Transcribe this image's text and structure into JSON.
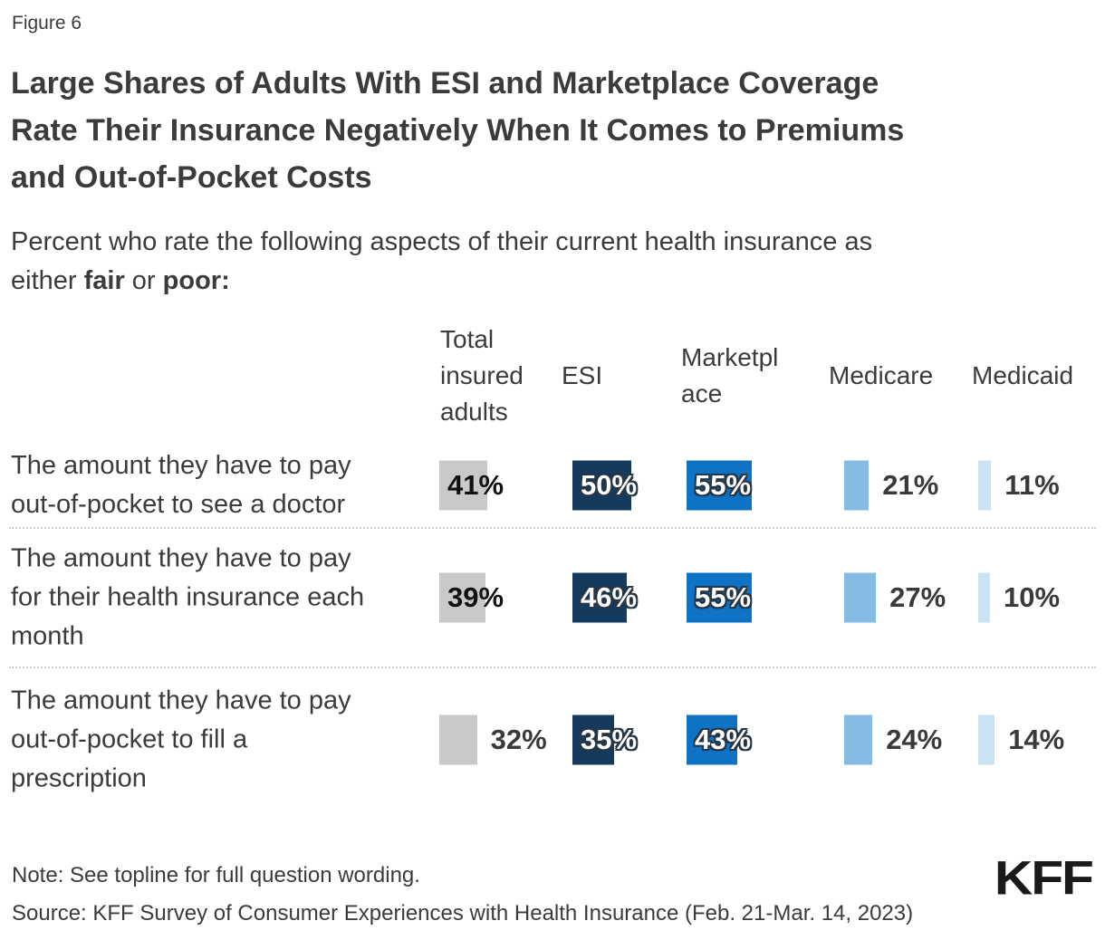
{
  "figure_label": "Figure 6",
  "title": "Large Shares of Adults With ESI and Marketplace Coverage\nRate Their Insurance Negatively When It Comes to Premiums\nand Out-of-Pocket Costs",
  "subtitle": {
    "prefix": "Percent who rate the following aspects of their current health insurance as\neither ",
    "bold1": "fair",
    "mid": " or ",
    "bold2": "poor:"
  },
  "chart_data": {
    "type": "bar",
    "orientation": "horizontal",
    "unit": "%",
    "title": "Large Shares of Adults With ESI and Marketplace Coverage Rate Their Insurance Negatively When It Comes to Premiums and Out-of-Pocket Costs",
    "subtitle": "Percent who rate the following aspects of their current health insurance as either fair or poor:",
    "value_range": [
      0,
      100
    ],
    "columns": [
      "Total insured adults",
      "ESI",
      "Marketplace",
      "Medicare",
      "Medicaid"
    ],
    "column_keys": [
      "total-insured",
      "esi",
      "marketplace",
      "medicare",
      "medicaid"
    ],
    "column_colors": [
      "#c9c9c9",
      "#143a5d",
      "#0f73c5",
      "#85bbe3",
      "#c9e2f4"
    ],
    "rows": [
      {
        "label": "The amount they have to pay\nout-of-pocket to see a doctor",
        "values": [
          41,
          50,
          55,
          21,
          11
        ]
      },
      {
        "label": "The amount they have to pay\nfor their health insurance each\nmonth",
        "values": [
          39,
          46,
          55,
          27,
          10
        ]
      },
      {
        "label": "The amount they have to pay\nout-of-pocket to fill a\nprescription",
        "values": [
          32,
          35,
          43,
          24,
          14
        ]
      }
    ]
  },
  "footer": {
    "note": "Note: See topline for full question wording.",
    "source": "Source: KFF Survey of Consumer Experiences with Health Insurance (Feb. 21-Mar. 14, 2023)",
    "logo": "KFF"
  }
}
